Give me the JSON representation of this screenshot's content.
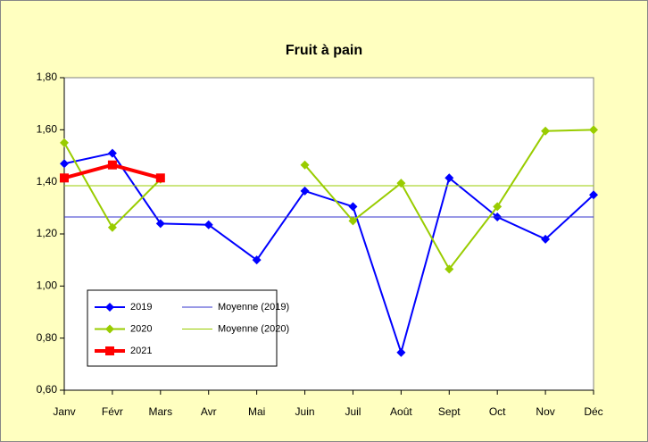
{
  "chart_data": {
    "type": "line",
    "title": "Fruit à pain",
    "categories": [
      "Janv",
      "Févr",
      "Mars",
      "Avr",
      "Mai",
      "Juin",
      "Juil",
      "Août",
      "Sept",
      "Oct",
      "Nov",
      "Déc"
    ],
    "series": [
      {
        "name": "2019",
        "color": "#0000ff",
        "marker": "diamond",
        "values": [
          1.47,
          1.51,
          1.24,
          1.235,
          1.1,
          1.365,
          1.305,
          0.745,
          1.415,
          1.265,
          1.18,
          1.35
        ]
      },
      {
        "name": "Moyenne (2019)",
        "color": "#3333cc",
        "values": [
          1.265,
          1.265,
          1.265,
          1.265,
          1.265,
          1.265,
          1.265,
          1.265,
          1.265,
          1.265,
          1.265,
          1.265
        ]
      },
      {
        "name": "2020",
        "color": "#99cc00",
        "marker": "diamond",
        "values": [
          1.55,
          1.225,
          1.41,
          null,
          null,
          1.465,
          1.25,
          1.395,
          1.065,
          1.305,
          1.595,
          1.6
        ]
      },
      {
        "name": "Moyenne (2020)",
        "color": "#99cc00",
        "values": [
          1.385,
          1.385,
          1.385,
          1.385,
          1.385,
          1.385,
          1.385,
          1.385,
          1.385,
          1.385,
          1.385,
          1.385
        ]
      },
      {
        "name": "2021",
        "color": "#ff0000",
        "marker": "square",
        "values": [
          1.415,
          1.465,
          1.415,
          null,
          null,
          null,
          null,
          null,
          null,
          null,
          null,
          null
        ]
      }
    ],
    "ylim": [
      0.6,
      1.8
    ],
    "yticks": [
      {
        "value": 0.6,
        "label": "0,60"
      },
      {
        "value": 0.8,
        "label": "0,80"
      },
      {
        "value": 1.0,
        "label": "1,00"
      },
      {
        "value": 1.2,
        "label": "1,20"
      },
      {
        "value": 1.4,
        "label": "1,40"
      },
      {
        "value": 1.6,
        "label": "1,60"
      },
      {
        "value": 1.8,
        "label": "1,80"
      }
    ]
  }
}
